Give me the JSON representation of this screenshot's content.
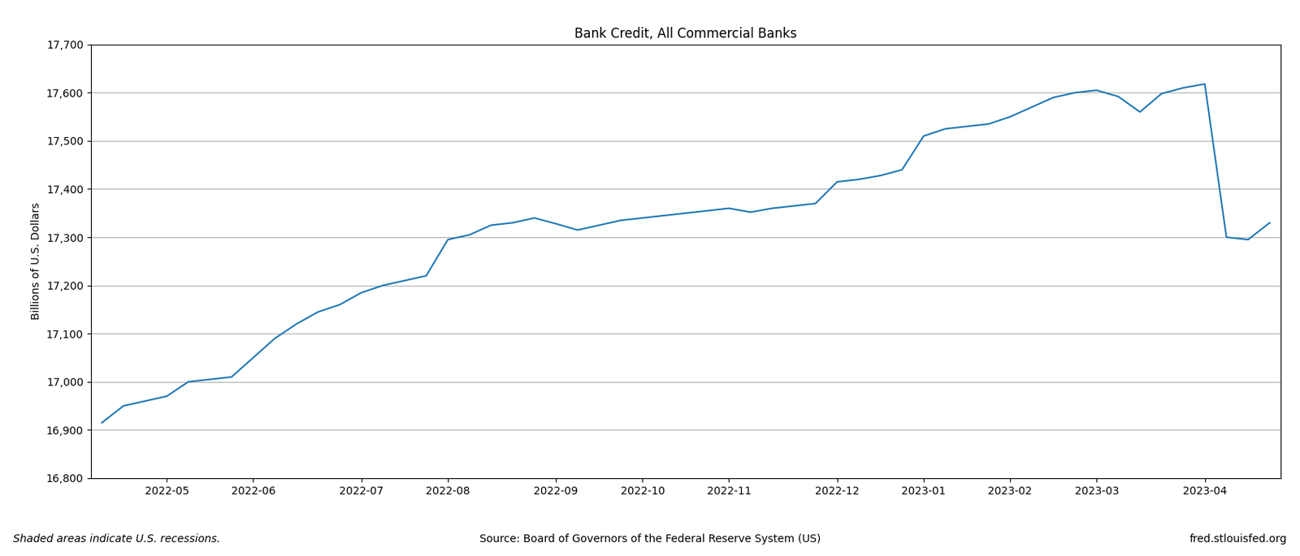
{
  "chart_data": {
    "type": "line",
    "title": "Bank Credit, All Commercial Banks",
    "y_label": "Billions of U.S. Dollars",
    "categories": [
      null,
      null,
      null,
      "2022-05",
      null,
      null,
      null,
      "2022-06",
      null,
      null,
      null,
      null,
      "2022-07",
      null,
      null,
      null,
      "2022-08",
      null,
      null,
      null,
      null,
      "2022-09",
      null,
      null,
      null,
      "2022-10",
      null,
      null,
      null,
      "2022-11",
      null,
      null,
      null,
      null,
      "2022-12",
      null,
      null,
      null,
      "2023-01",
      null,
      null,
      null,
      "2023-02",
      null,
      null,
      null,
      "2023-03",
      null,
      null,
      null,
      null,
      "2023-04",
      null,
      null,
      null
    ],
    "values": [
      16915,
      16950,
      16960,
      16970,
      17000,
      17005,
      17010,
      17050,
      17090,
      17120,
      17145,
      17160,
      17185,
      17200,
      17210,
      17220,
      17295,
      17305,
      17325,
      17330,
      17340,
      17328,
      17315,
      17325,
      17335,
      17340,
      17345,
      17350,
      17355,
      17360,
      17352,
      17360,
      17365,
      17370,
      17415,
      17420,
      17428,
      17440,
      17510,
      17525,
      17530,
      17535,
      17550,
      17570,
      17590,
      17600,
      17605,
      17592,
      17560,
      17598,
      17610,
      17618,
      17300,
      17295,
      17330
    ],
    "ylim": [
      16800,
      17700
    ],
    "yticks": [
      {
        "value": 16800,
        "label": "16,800"
      },
      {
        "value": 16900,
        "label": "16,900"
      },
      {
        "value": 17000,
        "label": "17,000"
      },
      {
        "value": 17100,
        "label": "17,100"
      },
      {
        "value": 17200,
        "label": "17,200"
      },
      {
        "value": 17300,
        "label": "17,300"
      },
      {
        "value": 17400,
        "label": "17,400"
      },
      {
        "value": 17500,
        "label": "17,500"
      },
      {
        "value": 17600,
        "label": "17,600"
      },
      {
        "value": 17700,
        "label": "17,700"
      }
    ],
    "grid": true,
    "annotations": [
      "Shaded areas indicate U.S. recessions.",
      "Source: Board of Governors of the Federal Reserve System (US)",
      "fred.stlouisfed.org"
    ]
  }
}
